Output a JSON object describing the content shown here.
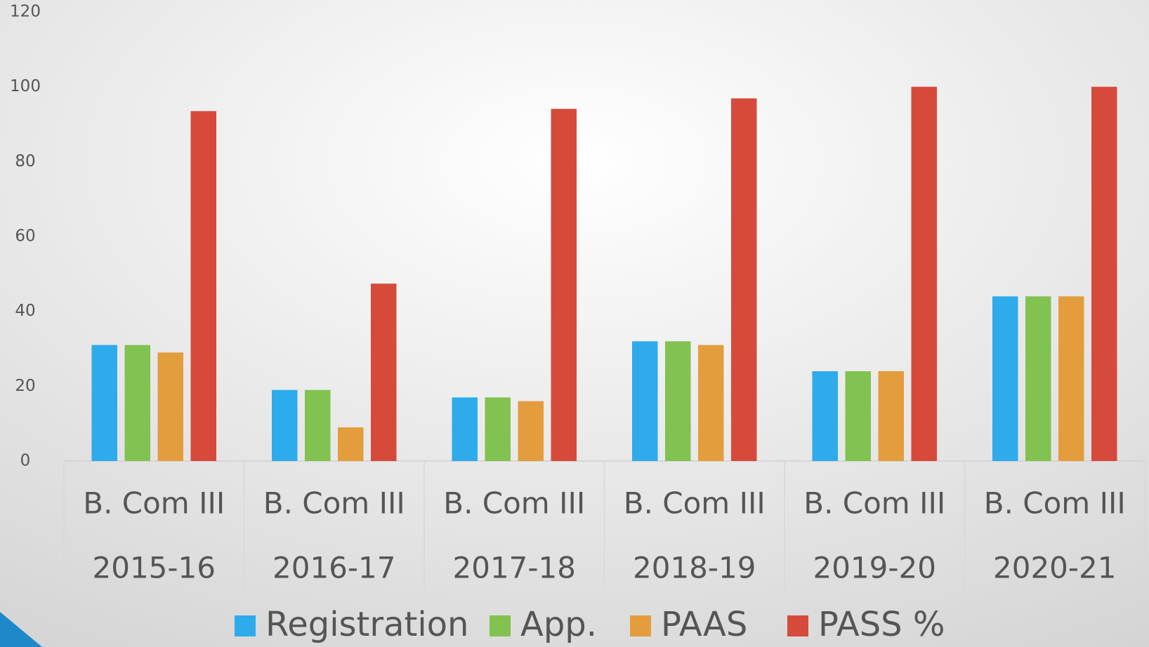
{
  "chart_data": {
    "type": "bar",
    "categories": [
      [
        "B. Com III",
        "2015-16"
      ],
      [
        "B. Com III",
        "2016-17"
      ],
      [
        "B. Com III",
        "2017-18"
      ],
      [
        "B. Com III",
        "2018-19"
      ],
      [
        "B. Com III",
        "2019-20"
      ],
      [
        "B. Com III",
        "2020-21"
      ]
    ],
    "series": [
      {
        "name": "Registration",
        "color": "#2eabeb",
        "values": [
          31,
          19,
          17,
          32,
          24,
          44
        ]
      },
      {
        "name": "App.",
        "color": "#82c250",
        "values": [
          31,
          19,
          17,
          32,
          24,
          44
        ]
      },
      {
        "name": "PAAS",
        "color": "#e39d3d",
        "values": [
          29,
          9,
          16,
          31,
          24,
          44
        ]
      },
      {
        "name": "PASS %",
        "color": "#d64a3b",
        "values": [
          93.5,
          47.4,
          94.1,
          96.9,
          100,
          100
        ]
      }
    ],
    "ylim": [
      0,
      120
    ],
    "yticks": [
      0,
      20,
      40,
      60,
      80,
      100,
      120
    ],
    "grid": false,
    "legend": "bottom"
  }
}
